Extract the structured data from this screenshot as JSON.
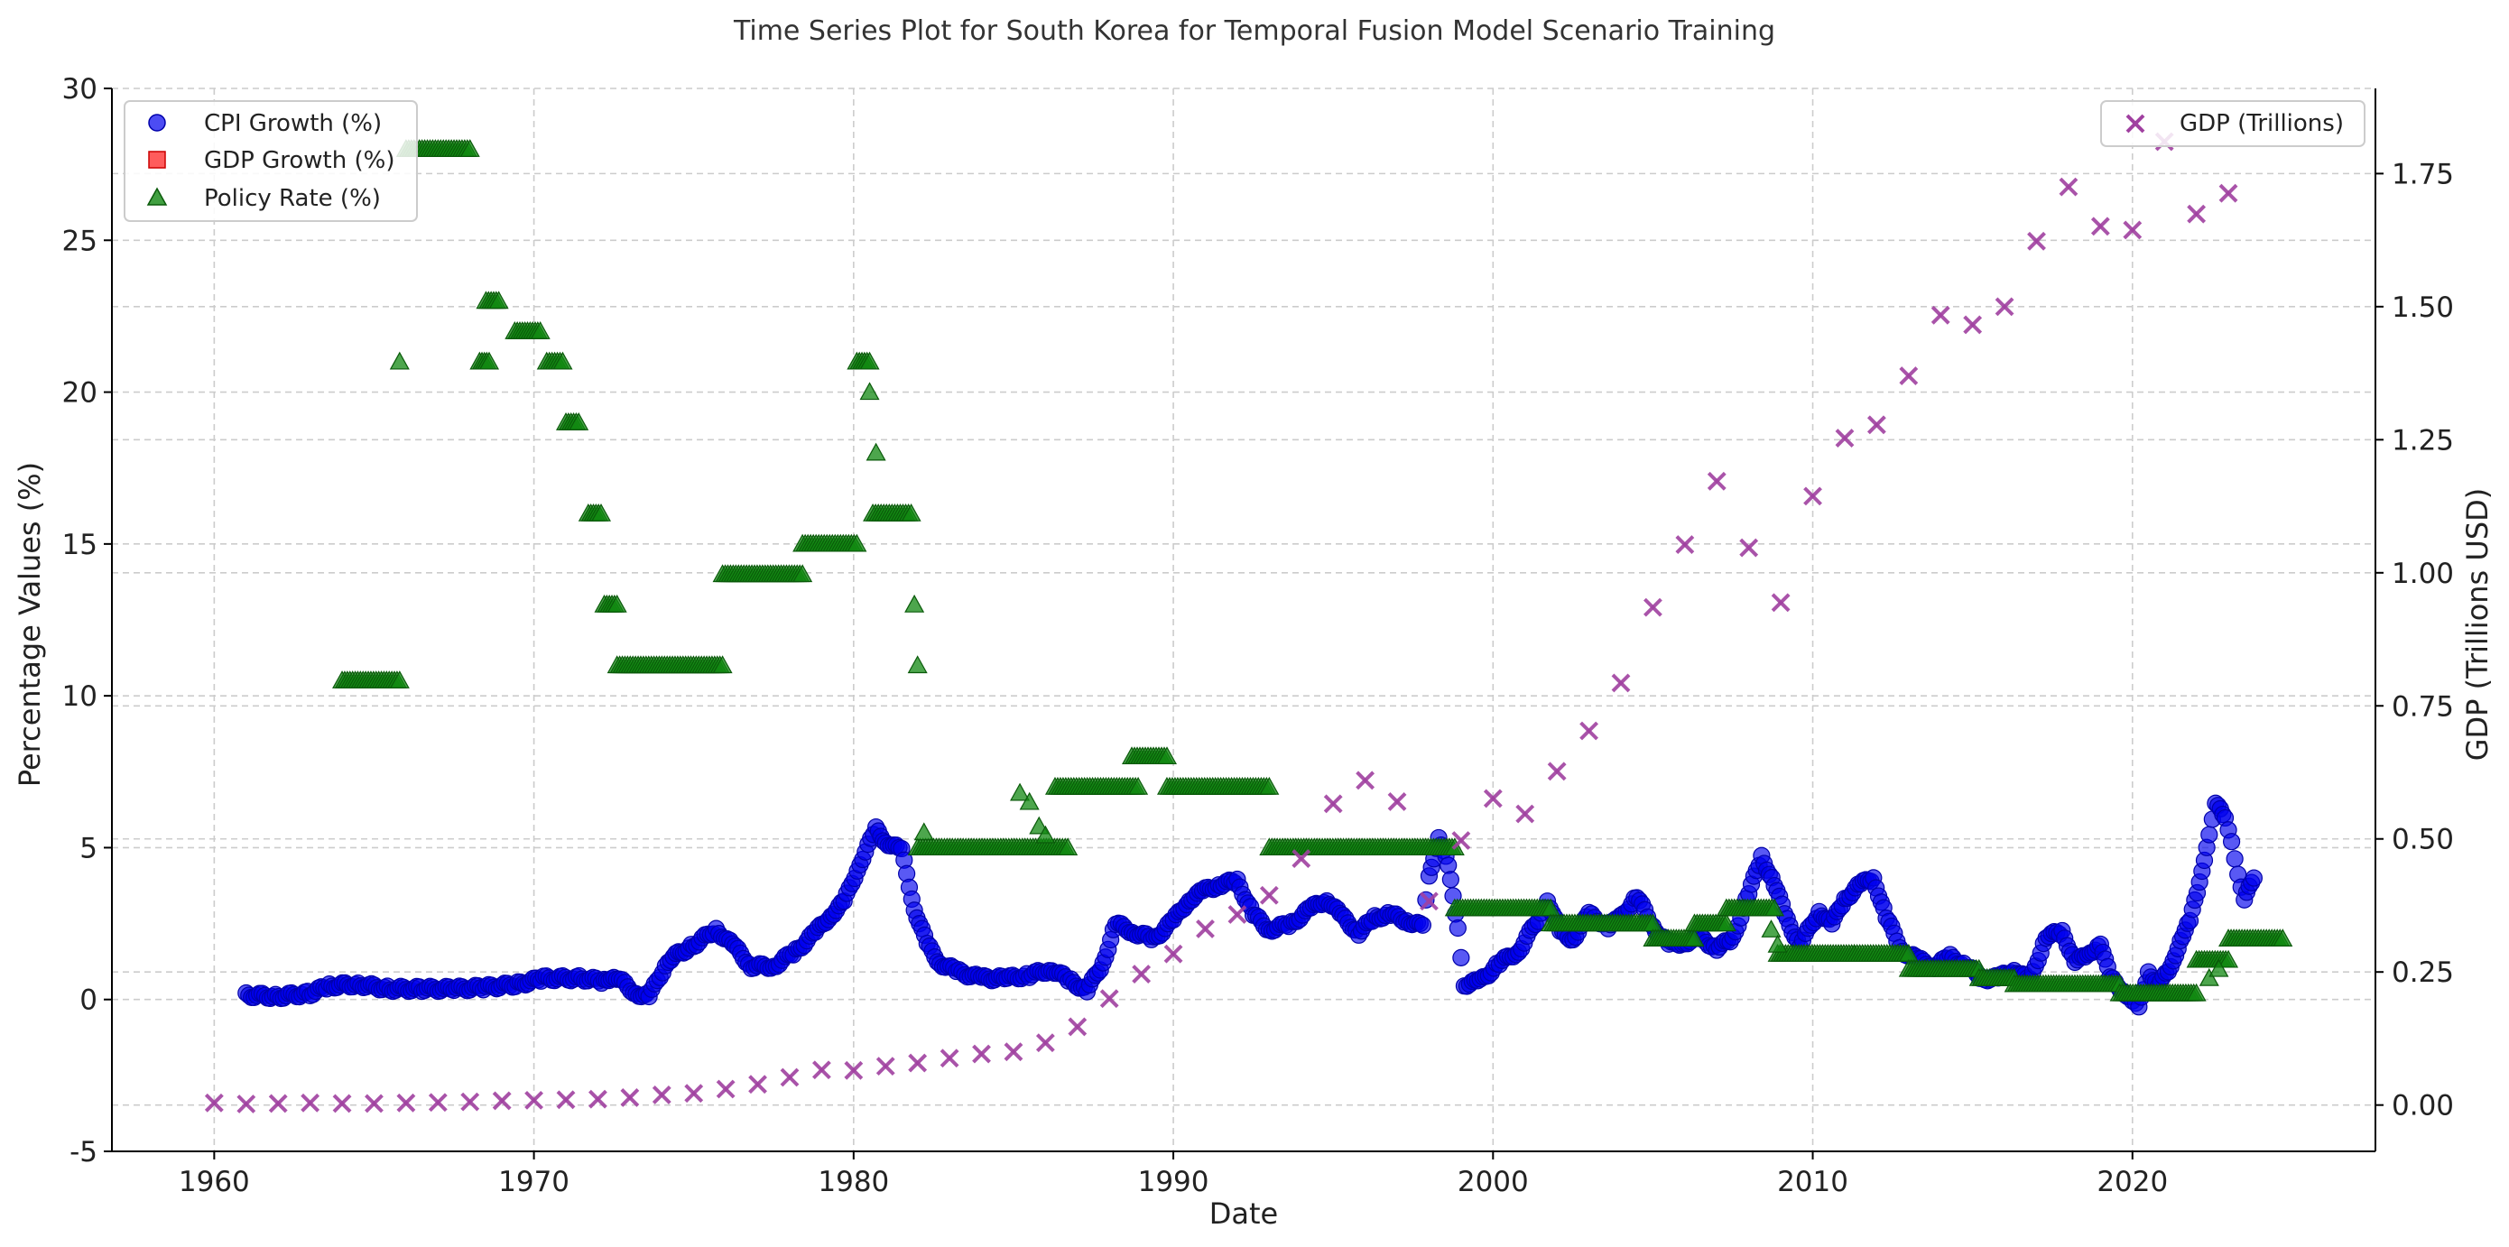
{
  "chart_data": {
    "type": "scatter",
    "title": "Time Series Plot for South Korea for Temporal Fusion Model Scenario Training",
    "xlabel": "Date",
    "ylabel_left": "Percentage Values (%)",
    "ylabel_right": "GDP (Trillions USD)",
    "x_ticks": [
      1960,
      1970,
      1980,
      1990,
      2000,
      2010,
      2020
    ],
    "x_range": [
      1956.8,
      2027.6
    ],
    "y_left_range": [
      -5,
      30
    ],
    "y_left_ticks": [
      -5,
      0,
      5,
      10,
      15,
      20,
      25,
      30
    ],
    "y_right_range": [
      -0.087,
      1.91
    ],
    "y_right_ticks": [
      "0.00",
      "0.25",
      "0.50",
      "0.75",
      "1.00",
      "1.25",
      "1.50",
      "1.75"
    ],
    "grid": true,
    "legend_left": {
      "placement": "top-left",
      "entries": [
        "CPI Growth (%)",
        "GDP Growth (%)",
        "Policy Rate (%)"
      ]
    },
    "legend_right": {
      "placement": "top-right",
      "entries": [
        "GDP (Trillions)"
      ]
    },
    "colors": {
      "cpi": "#0000ee",
      "gdp_growth": "#ff3333",
      "policy": "#118811",
      "gdp": "#a040a0"
    },
    "series": [
      {
        "name": "CPI Growth (%)",
        "marker": "circle",
        "axis": "left",
        "points": [
          [
            1961.0,
            0.15
          ],
          [
            1962.0,
            0.1
          ],
          [
            1963.0,
            0.2
          ],
          [
            1963.6,
            0.45
          ],
          [
            1964.5,
            0.5
          ],
          [
            1965.5,
            0.35
          ],
          [
            1966.5,
            0.35
          ],
          [
            1967.5,
            0.35
          ],
          [
            1968.5,
            0.4
          ],
          [
            1969.5,
            0.5
          ],
          [
            1970.3,
            0.7
          ],
          [
            1971.5,
            0.7
          ],
          [
            1972.2,
            0.6
          ],
          [
            1972.5,
            0.8
          ],
          [
            1973.2,
            0.2
          ],
          [
            1973.6,
            0.1
          ],
          [
            1974.2,
            1.3
          ],
          [
            1975.0,
            1.8
          ],
          [
            1975.7,
            2.3
          ],
          [
            1976.3,
            1.7
          ],
          [
            1976.8,
            1.1
          ],
          [
            1977.5,
            1.1
          ],
          [
            1978.2,
            1.6
          ],
          [
            1978.8,
            2.2
          ],
          [
            1979.3,
            2.8
          ],
          [
            1979.7,
            3.2
          ],
          [
            1980.2,
            4.5
          ],
          [
            1980.7,
            5.6
          ],
          [
            1981.0,
            5.2
          ],
          [
            1981.5,
            4.9
          ],
          [
            1981.9,
            3.0
          ],
          [
            1982.3,
            1.8
          ],
          [
            1982.7,
            1.2
          ],
          [
            1983.3,
            0.9
          ],
          [
            1984.0,
            0.7
          ],
          [
            1984.8,
            0.7
          ],
          [
            1985.5,
            0.8
          ],
          [
            1986.2,
            1.0
          ],
          [
            1986.8,
            0.6
          ],
          [
            1987.3,
            0.3
          ],
          [
            1987.8,
            1.2
          ],
          [
            1988.2,
            2.5
          ],
          [
            1988.8,
            2.2
          ],
          [
            1989.4,
            2.0
          ],
          [
            1990.0,
            2.6
          ],
          [
            1990.5,
            3.3
          ],
          [
            1991.0,
            3.6
          ],
          [
            1991.5,
            3.8
          ],
          [
            1992.0,
            3.9
          ],
          [
            1992.5,
            2.8
          ],
          [
            1993.0,
            2.3
          ],
          [
            1993.7,
            2.5
          ],
          [
            1994.3,
            3.0
          ],
          [
            1994.8,
            3.3
          ],
          [
            1995.3,
            2.7
          ],
          [
            1995.8,
            2.2
          ],
          [
            1996.3,
            2.7
          ],
          [
            1996.8,
            2.8
          ],
          [
            1997.3,
            2.6
          ],
          [
            1997.8,
            2.4
          ],
          [
            1998.0,
            4.0
          ],
          [
            1998.3,
            5.4
          ],
          [
            1998.6,
            4.4
          ],
          [
            1998.9,
            2.3
          ],
          [
            1999.1,
            0.5
          ],
          [
            1999.6,
            0.6
          ],
          [
            2000.2,
            1.2
          ],
          [
            2000.8,
            1.6
          ],
          [
            2001.5,
            2.8
          ],
          [
            2001.7,
            3.3
          ],
          [
            2002.1,
            2.2
          ],
          [
            2002.5,
            2.0
          ],
          [
            2003.0,
            2.8
          ],
          [
            2003.6,
            2.4
          ],
          [
            2004.0,
            2.7
          ],
          [
            2004.5,
            3.4
          ],
          [
            2005.0,
            2.4
          ],
          [
            2005.5,
            1.8
          ],
          [
            2006.0,
            1.9
          ],
          [
            2006.5,
            2.0
          ],
          [
            2007.0,
            1.7
          ],
          [
            2007.5,
            2.0
          ],
          [
            2008.0,
            3.5
          ],
          [
            2008.4,
            4.7
          ],
          [
            2008.8,
            3.8
          ],
          [
            2009.2,
            2.6
          ],
          [
            2009.6,
            1.8
          ],
          [
            2010.2,
            2.9
          ],
          [
            2010.6,
            2.5
          ],
          [
            2011.0,
            3.3
          ],
          [
            2011.5,
            3.8
          ],
          [
            2011.9,
            4.0
          ],
          [
            2012.3,
            2.7
          ],
          [
            2012.8,
            1.6
          ],
          [
            2013.3,
            1.3
          ],
          [
            2013.8,
            1.1
          ],
          [
            2014.3,
            1.4
          ],
          [
            2014.8,
            1.1
          ],
          [
            2015.3,
            0.7
          ],
          [
            2015.8,
            0.7
          ],
          [
            2016.3,
            1.0
          ],
          [
            2016.8,
            0.6
          ],
          [
            2017.3,
            2.1
          ],
          [
            2017.8,
            2.2
          ],
          [
            2018.2,
            1.3
          ],
          [
            2018.6,
            1.4
          ],
          [
            2019.0,
            1.9
          ],
          [
            2019.3,
            0.7
          ],
          [
            2019.7,
            0.3
          ],
          [
            2020.0,
            0.0
          ],
          [
            2020.2,
            -0.3
          ],
          [
            2020.5,
            0.9
          ],
          [
            2020.8,
            0.5
          ],
          [
            2021.2,
            1.0
          ],
          [
            2021.5,
            2.0
          ],
          [
            2021.8,
            2.6
          ],
          [
            2022.1,
            3.8
          ],
          [
            2022.4,
            5.5
          ],
          [
            2022.6,
            6.5
          ],
          [
            2022.9,
            5.9
          ],
          [
            2023.1,
            5.2
          ],
          [
            2023.3,
            4.2
          ],
          [
            2023.5,
            3.3
          ],
          [
            2023.8,
            4.0
          ]
        ]
      },
      {
        "name": "GDP Growth (%)",
        "marker": "square",
        "axis": "left",
        "points": []
      },
      {
        "name": "Policy Rate (%)",
        "marker": "triangle",
        "axis": "left",
        "segments": [
          [
            1964.0,
            1965.8,
            10.5
          ],
          [
            1966.0,
            1968.0,
            28.0
          ],
          [
            1968.5,
            1968.9,
            23.0
          ],
          [
            1968.3,
            1968.6,
            21.0
          ],
          [
            1969.4,
            1970.2,
            22.0
          ],
          [
            1970.4,
            1970.9,
            21.0
          ],
          [
            1971.0,
            1971.4,
            19.0
          ],
          [
            1971.7,
            1972.1,
            16.0
          ],
          [
            1972.2,
            1972.6,
            13.0
          ],
          [
            1972.6,
            1975.9,
            11.0
          ],
          [
            1975.9,
            1978.4,
            14.0
          ],
          [
            1978.4,
            1980.1,
            15.0
          ],
          [
            1980.1,
            1980.5,
            21.0
          ],
          [
            1980.6,
            1981.8,
            16.0
          ],
          [
            1982.0,
            1986.7,
            5.0
          ],
          [
            1986.3,
            1988.9,
            7.0
          ],
          [
            1988.7,
            1989.8,
            8.0
          ],
          [
            1989.8,
            1993.0,
            7.0
          ],
          [
            1993.0,
            1998.8,
            5.0
          ],
          [
            1998.8,
            2001.8,
            3.0
          ],
          [
            2001.8,
            2005.0,
            2.5
          ],
          [
            2005.0,
            2006.3,
            2.0
          ],
          [
            2006.3,
            2007.3,
            2.5
          ],
          [
            2007.3,
            2008.8,
            3.0
          ],
          [
            2008.9,
            2011.3,
            1.5
          ],
          [
            2011.3,
            2013.0,
            1.5
          ],
          [
            2013.0,
            2015.2,
            1.0
          ],
          [
            2015.2,
            2016.3,
            0.7
          ],
          [
            2016.3,
            2019.6,
            0.5
          ],
          [
            2019.6,
            2022.0,
            0.2
          ],
          [
            2022.0,
            2023.0,
            1.3
          ],
          [
            2023.0,
            2024.7,
            2.0
          ]
        ],
        "points": [
          [
            1965.8,
            21.0
          ],
          [
            1980.5,
            20.0
          ],
          [
            1980.7,
            18.0
          ],
          [
            1981.9,
            13.0
          ],
          [
            1982.0,
            11.0
          ],
          [
            1982.2,
            5.5
          ],
          [
            1985.2,
            6.8
          ],
          [
            1985.5,
            6.5
          ],
          [
            1985.8,
            5.7
          ],
          [
            1986.0,
            5.4
          ],
          [
            2008.7,
            2.3
          ],
          [
            2008.9,
            1.8
          ],
          [
            2022.4,
            0.7
          ],
          [
            2022.7,
            1.0
          ]
        ]
      },
      {
        "name": "GDP (Trillions)",
        "marker": "x",
        "axis": "right",
        "points": [
          [
            1960,
            0.004
          ],
          [
            1961,
            0.002
          ],
          [
            1962,
            0.003
          ],
          [
            1963,
            0.004
          ],
          [
            1964,
            0.003
          ],
          [
            1965,
            0.003
          ],
          [
            1966,
            0.004
          ],
          [
            1967,
            0.005
          ],
          [
            1968,
            0.006
          ],
          [
            1969,
            0.008
          ],
          [
            1970,
            0.009
          ],
          [
            1971,
            0.01
          ],
          [
            1972,
            0.011
          ],
          [
            1973,
            0.014
          ],
          [
            1974,
            0.019
          ],
          [
            1975,
            0.022
          ],
          [
            1976,
            0.03
          ],
          [
            1977,
            0.039
          ],
          [
            1978,
            0.052
          ],
          [
            1979,
            0.066
          ],
          [
            1980,
            0.065
          ],
          [
            1981,
            0.073
          ],
          [
            1982,
            0.079
          ],
          [
            1983,
            0.088
          ],
          [
            1984,
            0.096
          ],
          [
            1985,
            0.1
          ],
          [
            1986,
            0.117
          ],
          [
            1987,
            0.147
          ],
          [
            1988,
            0.2
          ],
          [
            1989,
            0.246
          ],
          [
            1990,
            0.284
          ],
          [
            1991,
            0.331
          ],
          [
            1992,
            0.358
          ],
          [
            1993,
            0.394
          ],
          [
            1994,
            0.463
          ],
          [
            1995,
            0.566
          ],
          [
            1996,
            0.61
          ],
          [
            1997,
            0.57
          ],
          [
            1998,
            0.383
          ],
          [
            1999,
            0.497
          ],
          [
            2000,
            0.576
          ],
          [
            2001,
            0.547
          ],
          [
            2002,
            0.627
          ],
          [
            2003,
            0.703
          ],
          [
            2004,
            0.793
          ],
          [
            2005,
            0.935
          ],
          [
            2006,
            1.053
          ],
          [
            2007,
            1.172
          ],
          [
            2008,
            1.047
          ],
          [
            2009,
            0.944
          ],
          [
            2010,
            1.144
          ],
          [
            2011,
            1.253
          ],
          [
            2012,
            1.278
          ],
          [
            2013,
            1.37
          ],
          [
            2014,
            1.484
          ],
          [
            2015,
            1.466
          ],
          [
            2016,
            1.5
          ],
          [
            2017,
            1.623
          ],
          [
            2018,
            1.725
          ],
          [
            2019,
            1.651
          ],
          [
            2020,
            1.644
          ],
          [
            2021,
            1.81
          ],
          [
            2022,
            1.674
          ],
          [
            2023,
            1.713
          ]
        ]
      }
    ]
  }
}
